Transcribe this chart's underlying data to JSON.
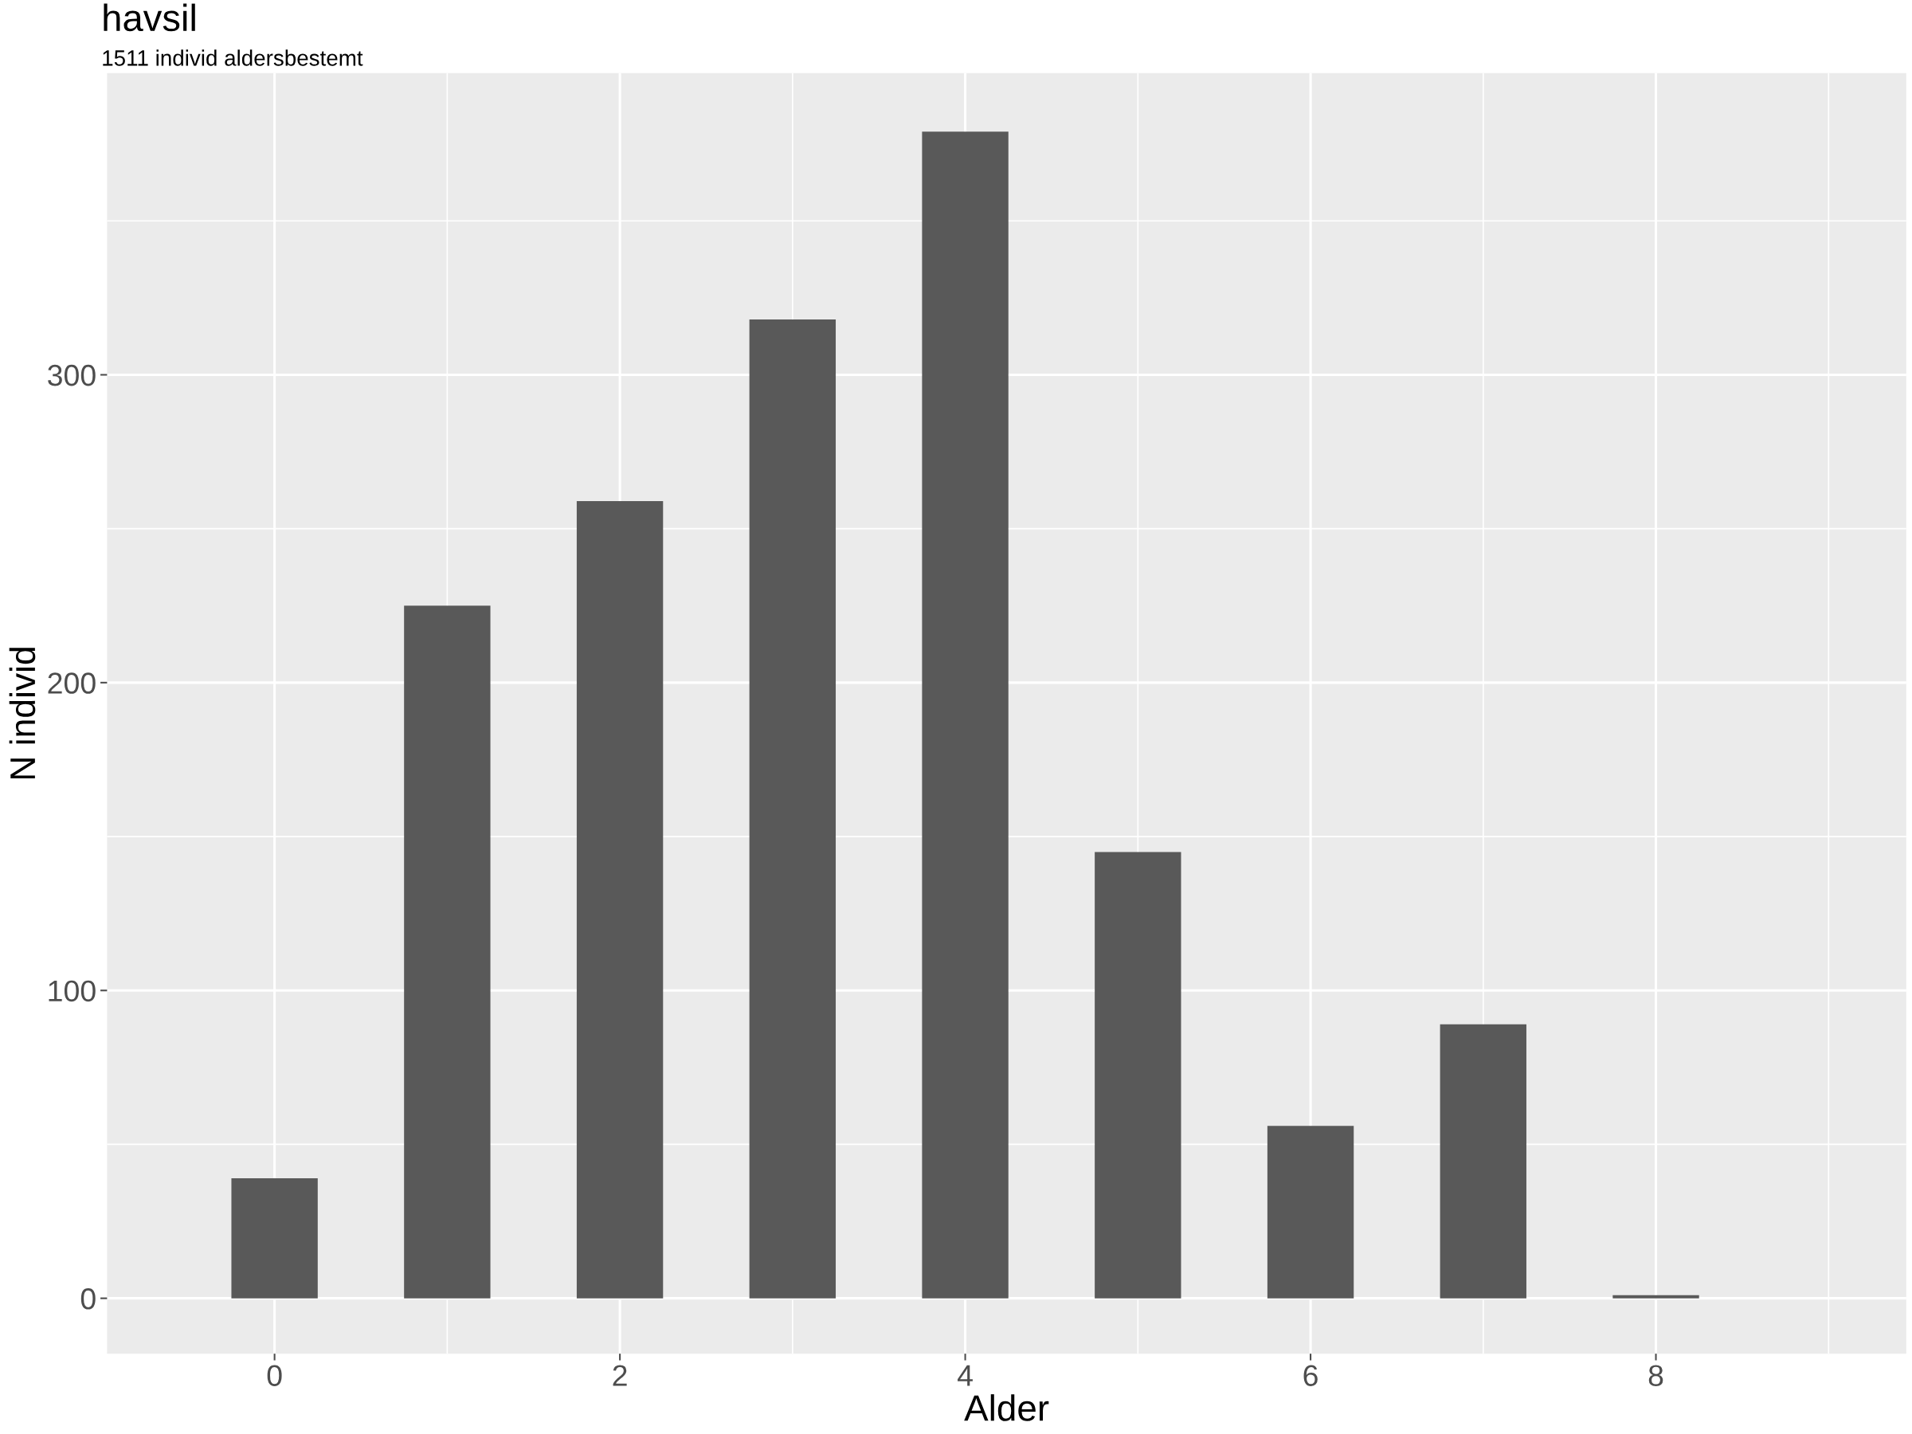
{
  "chart_data": {
    "type": "bar",
    "title": "havsil",
    "subtitle": "1511 individ aldersbestemt",
    "xlabel": "Alder",
    "ylabel": "N individ",
    "x": [
      0,
      1,
      2,
      3,
      4,
      5,
      6,
      7,
      8
    ],
    "values": [
      39,
      225,
      259,
      318,
      379,
      145,
      56,
      89,
      1
    ],
    "color": "#595959",
    "xlim": [
      -0.97,
      9.45
    ],
    "xticks": [
      0,
      2,
      4,
      6,
      8
    ],
    "ylim": [
      -18,
      398
    ],
    "yticks": [
      0,
      100,
      200,
      300
    ],
    "grid": true
  }
}
